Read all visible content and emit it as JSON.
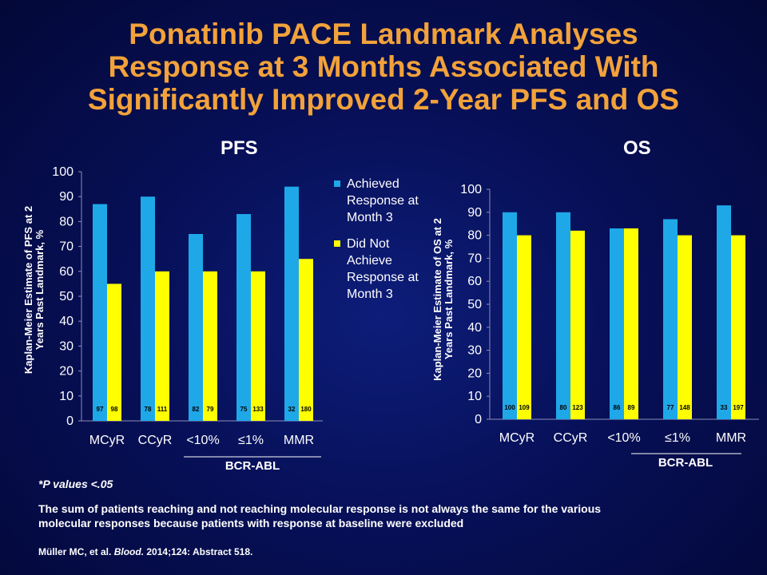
{
  "title": {
    "lines": [
      "Ponatinib PACE Landmark Analyses",
      "Response at 3 Months Associated With",
      "Significantly Improved 2-Year PFS and OS"
    ]
  },
  "colors": {
    "achieved": "#1ea8e8",
    "not_achieved": "#ffff00",
    "title": "#f2a23a"
  },
  "legend": {
    "placement": "between charts",
    "items": [
      {
        "label_lines": [
          "Achieved",
          "Response at",
          "Month 3"
        ],
        "color": "#1ea8e8"
      },
      {
        "label_lines": [
          "Did Not",
          "Achieve",
          "Response at",
          "Month 3"
        ],
        "color": "#ffff00"
      }
    ]
  },
  "chart_data": [
    {
      "type": "bar",
      "title": "PFS",
      "categories": [
        "MCyR",
        "CCyR",
        "<10%",
        "≤1%",
        "MMR"
      ],
      "group_label": "BCR-ABL",
      "ylabel_lines": [
        "Kaplan-Meier Estimate of PFS at 2",
        "Years Past Landmark, %"
      ],
      "ylim": [
        0,
        100
      ],
      "yticks": [
        0,
        10,
        20,
        30,
        40,
        50,
        60,
        70,
        80,
        90,
        100
      ],
      "grid": false,
      "series": [
        {
          "name": "Achieved Response at Month 3",
          "values": [
            87,
            90,
            75,
            83,
            94
          ],
          "n": [
            "97",
            "78",
            "82",
            "75",
            "32"
          ]
        },
        {
          "name": "Did Not Achieve Response at Month 3",
          "values": [
            55,
            60,
            60,
            60,
            65
          ],
          "n": [
            "98",
            "111",
            "79",
            "133",
            "180"
          ]
        }
      ]
    },
    {
      "type": "bar",
      "title": "OS",
      "categories": [
        "MCyR",
        "CCyR",
        "<10%",
        "≤1%",
        "MMR"
      ],
      "group_label": "BCR-ABL",
      "ylabel_lines": [
        "Kaplan-Meier Estimate of OS at 2",
        "Years Past Landmark, %"
      ],
      "ylim": [
        0,
        100
      ],
      "yticks": [
        0,
        10,
        20,
        30,
        40,
        50,
        60,
        70,
        80,
        90,
        100
      ],
      "grid": false,
      "series": [
        {
          "name": "Achieved Response at Month 3",
          "values": [
            90,
            90,
            83,
            87,
            93
          ],
          "n": [
            "100",
            "80",
            "86",
            "77",
            "33"
          ]
        },
        {
          "name": "Did Not Achieve Response at Month 3",
          "values": [
            80,
            82,
            83,
            80,
            80
          ],
          "n": [
            "109",
            "123",
            "89",
            "148",
            "197"
          ]
        }
      ]
    }
  ],
  "footnote": "*P values <.05",
  "note_lines": [
    "The sum of patients reaching and not reaching molecular response is not always the same for the various",
    "molecular responses because patients with response at baseline were excluded"
  ],
  "citation": {
    "author": "Müller MC, et al.",
    "journal": "Blood.",
    "rest": "2014;124: Abstract 518."
  }
}
